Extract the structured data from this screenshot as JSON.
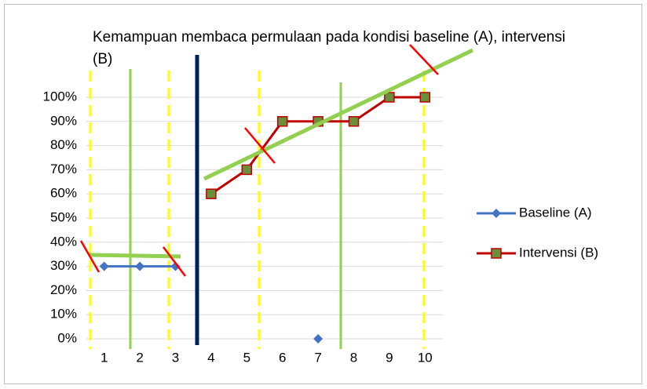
{
  "chart_data": {
    "type": "line",
    "title": "Kemampuan membaca permulaan pada kondisi baseline (A), intervensi (B)",
    "categories": [
      "1",
      "2",
      "3",
      "4",
      "5",
      "6",
      "7",
      "8",
      "9",
      "10"
    ],
    "series": [
      {
        "name": "Baseline (A)",
        "color": "#4472c4",
        "marker": "diamond",
        "values": [
          30,
          30,
          30,
          null,
          null,
          null,
          0,
          null,
          null,
          null
        ]
      },
      {
        "name": "Intervensi (B)",
        "color": "#c00000",
        "marker": "square",
        "values": [
          null,
          null,
          null,
          60,
          70,
          90,
          90,
          90,
          100,
          100
        ]
      }
    ],
    "ylim": [
      0,
      100
    ],
    "yticks": [
      {
        "value": 0,
        "label": "0%"
      },
      {
        "value": 10,
        "label": "10%"
      },
      {
        "value": 20,
        "label": "20%"
      },
      {
        "value": 30,
        "label": "30%"
      },
      {
        "value": 40,
        "label": "40%"
      },
      {
        "value": 50,
        "label": "50%"
      },
      {
        "value": 60,
        "label": "60%"
      },
      {
        "value": 70,
        "label": "70%"
      },
      {
        "value": 80,
        "label": "80%"
      },
      {
        "value": 90,
        "label": "90%"
      },
      {
        "value": 100,
        "label": "100%"
      }
    ],
    "grid": true,
    "legend": "right"
  }
}
